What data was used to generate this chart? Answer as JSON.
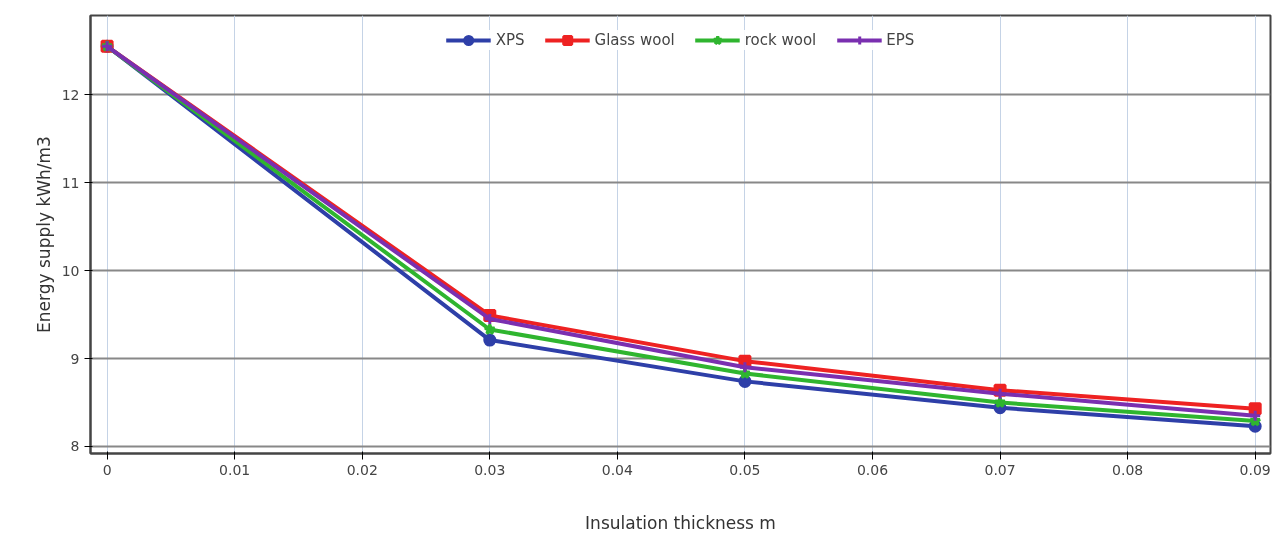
{
  "chart_data": {
    "type": "line",
    "xlabel": "Insulation thickness m",
    "ylabel": "Energy supply kWh/m3",
    "x": [
      0,
      0.03,
      0.05,
      0.07,
      0.09
    ],
    "series": [
      {
        "name": "XPS",
        "color": "#2e3fa8",
        "marker": "circle",
        "values": [
          12.55,
          9.21,
          8.74,
          8.44,
          8.23
        ]
      },
      {
        "name": "Glass wool",
        "color": "#ee2222",
        "marker": "square",
        "values": [
          12.55,
          9.49,
          8.97,
          8.64,
          8.43
        ]
      },
      {
        "name": "rock wool",
        "color": "#2fb52f",
        "marker": "star",
        "values": [
          12.55,
          9.33,
          8.83,
          8.5,
          8.29
        ]
      },
      {
        "name": "EPS",
        "color": "#7a2fb0",
        "marker": "cross",
        "values": [
          12.55,
          9.45,
          8.9,
          8.6,
          8.35
        ]
      }
    ],
    "xlim": [
      -0.0013,
      0.0912
    ],
    "ylim": [
      7.92,
      12.9
    ],
    "xticks": [
      0,
      0.01,
      0.02,
      0.03,
      0.04,
      0.05,
      0.06,
      0.07,
      0.08,
      0.09
    ],
    "yticks": [
      8,
      9,
      10,
      11,
      12
    ],
    "grid": true,
    "legend": "top",
    "line_style": "solid"
  }
}
